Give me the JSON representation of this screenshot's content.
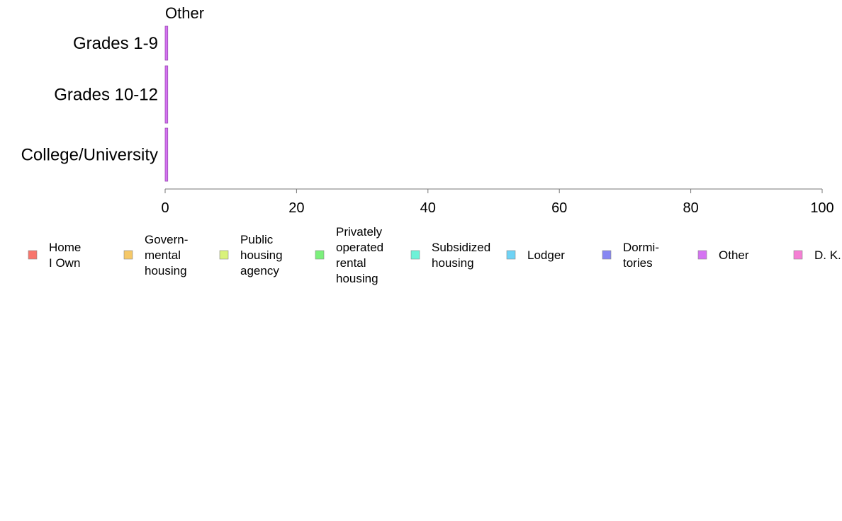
{
  "chart_data": {
    "type": "bar",
    "orientation": "horizontal",
    "stacked": true,
    "title": "Other",
    "xlabel": "",
    "ylabel": "",
    "xlim": [
      0,
      100
    ],
    "x_ticks": [
      "0",
      "20",
      "40",
      "60",
      "80",
      "100"
    ],
    "categories": [
      "Grades 1-9",
      "Grades 10-12",
      "College/University"
    ],
    "series": [
      {
        "name": "Home I Own",
        "legend_lines": [
          "Home",
          "I Own"
        ],
        "color": "#f8766d",
        "values": [
          0,
          0,
          0
        ]
      },
      {
        "name": "Govern- mental housing",
        "legend_lines": [
          "Govern-",
          "mental",
          " housing"
        ],
        "color": "#f5c868",
        "values": [
          0,
          0,
          0
        ]
      },
      {
        "name": "Public housing agency",
        "legend_lines": [
          "Public",
          "housing",
          "agency"
        ],
        "color": "#d9f27a",
        "values": [
          0,
          0,
          0
        ]
      },
      {
        "name": "Privately operated rental housing",
        "legend_lines": [
          "Privately",
          "operated",
          "rental",
          "housing"
        ],
        "color": "#7cf07c",
        "values": [
          0,
          0,
          0
        ]
      },
      {
        "name": "Subsidized housing",
        "legend_lines": [
          "Subsidized",
          " housing"
        ],
        "color": "#6ff2d8",
        "values": [
          0,
          0,
          0
        ]
      },
      {
        "name": "Lodger",
        "legend_lines": [
          "Lodger"
        ],
        "color": "#6fd3f5",
        "values": [
          0,
          0,
          0
        ]
      },
      {
        "name": "Dormi- tories",
        "legend_lines": [
          "Dormi-",
          "tories"
        ],
        "color": "#8787f2",
        "values": [
          0,
          0,
          0
        ]
      },
      {
        "name": "Other",
        "legend_lines": [
          "Other"
        ],
        "color": "#d574f2",
        "values": [
          0.4,
          0.4,
          0.4
        ]
      },
      {
        "name": "D. K.",
        "legend_lines": [
          "D. K."
        ],
        "color": "#f57fd4",
        "values": [
          0,
          0,
          0
        ]
      }
    ],
    "grid": false,
    "legend_position": "bottom"
  }
}
